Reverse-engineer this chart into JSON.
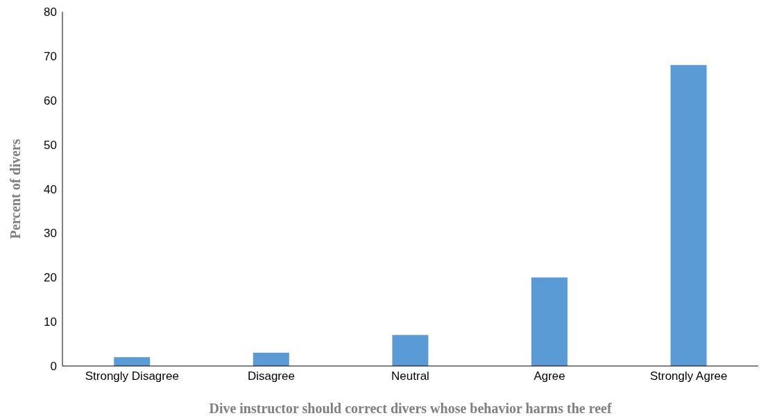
{
  "chart_data": {
    "type": "bar",
    "xlabel": "Dive instructor should correct divers whose behavior harms the reef",
    "ylabel": "Percent of divers",
    "categories": [
      "Strongly Disagree",
      "Disagree",
      "Neutral",
      "Agree",
      "Strongly Agree"
    ],
    "values": [
      2,
      3,
      7,
      20,
      68
    ],
    "color": "#5b9bd5",
    "ylim": [
      0,
      80
    ],
    "yticks": [
      0,
      10,
      20,
      30,
      40,
      50,
      60,
      70,
      80
    ],
    "grid": false
  }
}
